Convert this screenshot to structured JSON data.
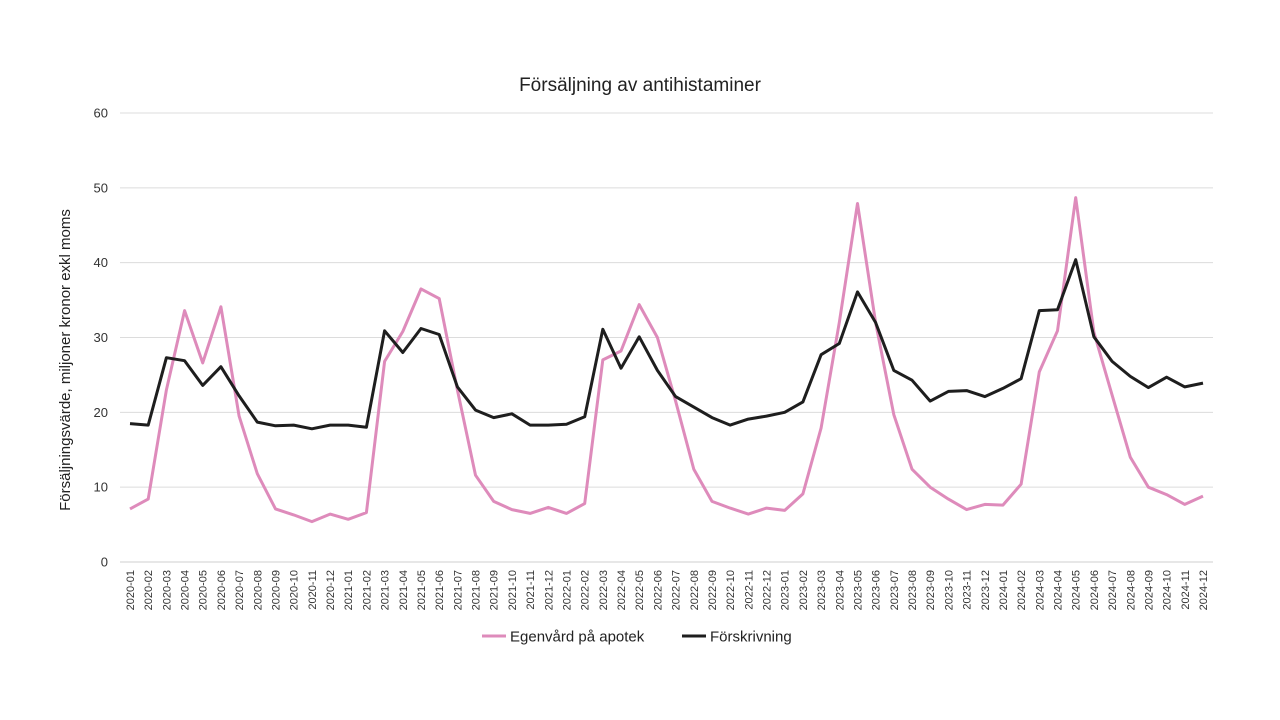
{
  "chart_data": {
    "type": "line",
    "title": "Försäljning av antihistaminer",
    "xlabel": "",
    "ylabel": "Försäljningsvärde, miljoner kronor exkl moms",
    "ylim": [
      0,
      60
    ],
    "yticks": [
      "0",
      "10",
      "20",
      "30",
      "40",
      "50",
      "60"
    ],
    "grid": true,
    "legend_position": "bottom",
    "x": [
      "2020-01",
      "2020-02",
      "2020-03",
      "2020-04",
      "2020-05",
      "2020-06",
      "2020-07",
      "2020-08",
      "2020-09",
      "2020-10",
      "2020-11",
      "2020-12",
      "2021-01",
      "2021-02",
      "2021-03",
      "2021-04",
      "2021-05",
      "2021-06",
      "2021-07",
      "2021-08",
      "2021-09",
      "2021-10",
      "2021-11",
      "2021-12",
      "2022-01",
      "2022-02",
      "2022-03",
      "2022-04",
      "2022-05",
      "2022-06",
      "2022-07",
      "2022-08",
      "2022-09",
      "2022-10",
      "2022-11",
      "2022-12",
      "2023-01",
      "2023-02",
      "2023-03",
      "2023-04",
      "2023-05",
      "2023-06",
      "2023-07",
      "2023-08",
      "2023-09",
      "2023-10",
      "2023-11",
      "2023-12",
      "2024-01",
      "2024-02",
      "2024-03",
      "2024-04",
      "2024-05",
      "2024-06",
      "2024-07",
      "2024-08",
      "2024-09",
      "2024-10",
      "2024-11",
      "2024-12"
    ],
    "series": [
      {
        "name": "Egenvård på apotek",
        "color": "#de8bbb",
        "values": [
          7.1,
          8.4,
          23.0,
          33.6,
          26.6,
          34.1,
          19.5,
          11.8,
          7.1,
          6.3,
          5.4,
          6.4,
          5.7,
          6.6,
          26.8,
          30.8,
          36.5,
          35.2,
          23.0,
          11.6,
          8.1,
          7.0,
          6.5,
          7.3,
          6.5,
          7.8,
          27.0,
          28.2,
          34.4,
          30.0,
          21.5,
          12.4,
          8.1,
          7.2,
          6.4,
          7.2,
          6.9,
          9.1,
          17.9,
          32.0,
          47.9,
          32.0,
          19.7,
          12.4,
          10.0,
          8.4,
          7.0,
          7.7,
          7.6,
          10.4,
          25.4,
          30.9,
          48.7,
          30.7,
          22.3,
          14.0,
          10.0,
          9.0,
          7.7,
          8.8
        ]
      },
      {
        "name": "Förskrivning",
        "color": "#1e1e1e",
        "values": [
          18.5,
          18.3,
          27.3,
          26.9,
          23.6,
          26.1,
          22.2,
          18.7,
          18.2,
          18.3,
          17.8,
          18.3,
          18.3,
          18.0,
          30.9,
          28.0,
          31.2,
          30.4,
          23.4,
          20.3,
          19.3,
          19.8,
          18.3,
          18.3,
          18.4,
          19.4,
          31.1,
          25.9,
          30.1,
          25.6,
          22.1,
          20.7,
          19.3,
          18.3,
          19.1,
          19.5,
          20.0,
          21.4,
          27.7,
          29.2,
          36.1,
          32.0,
          25.6,
          24.3,
          21.5,
          22.8,
          22.9,
          22.1,
          23.2,
          24.5,
          33.6,
          33.7,
          40.4,
          30.1,
          26.8,
          24.8,
          23.3,
          24.7,
          23.4,
          23.9
        ]
      }
    ]
  }
}
